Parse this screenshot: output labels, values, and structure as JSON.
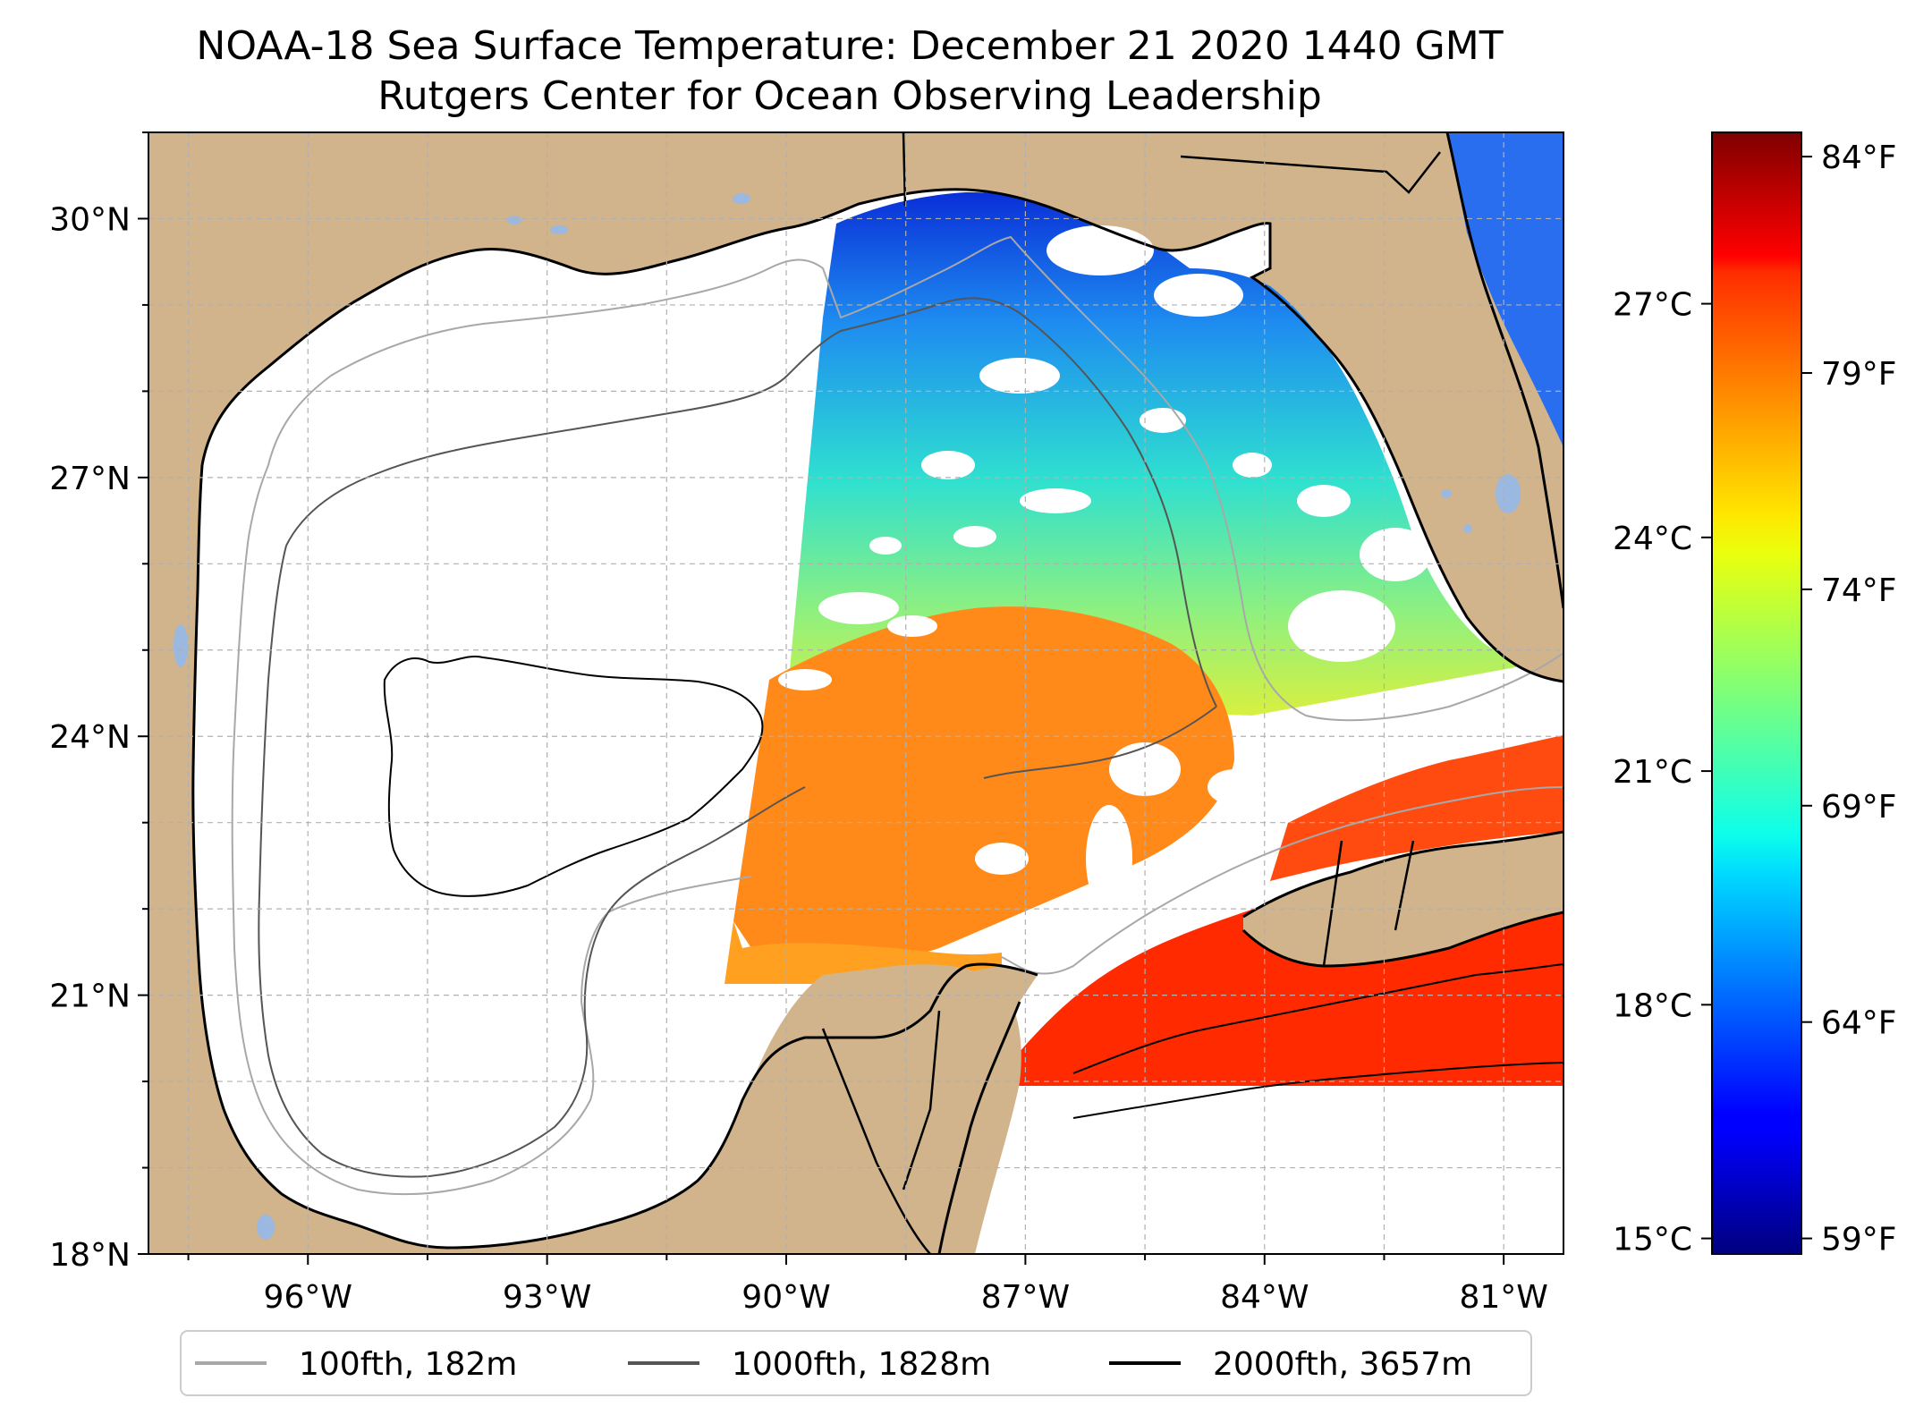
{
  "title": {
    "line1": "NOAA-18 Sea Surface Temperature: December 21 2020 1440 GMT",
    "line2": "Rutgers Center for Ocean Observing Leadership"
  },
  "map": {
    "lon_range": [
      -98,
      -80.25
    ],
    "lat_range": [
      18,
      31
    ],
    "lon_ticks": [
      {
        "value": -96,
        "label": "96°W"
      },
      {
        "value": -93,
        "label": "93°W"
      },
      {
        "value": -90,
        "label": "90°W"
      },
      {
        "value": -87,
        "label": "87°W"
      },
      {
        "value": -84,
        "label": "84°W"
      },
      {
        "value": -81,
        "label": "81°W"
      }
    ],
    "lat_ticks": [
      {
        "value": 18,
        "label": "18°N"
      },
      {
        "value": 21,
        "label": "21°N"
      },
      {
        "value": 24,
        "label": "24°N"
      },
      {
        "value": 27,
        "label": "27°N"
      },
      {
        "value": 30,
        "label": "30°N"
      }
    ],
    "grid": true,
    "colors": {
      "land": "#d2b48c",
      "lakes": "#9bb8e0",
      "coast": "#000000",
      "grid": "#b0b0b0",
      "missing": "#ffffff"
    }
  },
  "colorbar": {
    "colormap": "jet",
    "celsius_ticks": [
      {
        "value": 15,
        "label": "15°C"
      },
      {
        "value": 18,
        "label": "18°C"
      },
      {
        "value": 21,
        "label": "21°C"
      },
      {
        "value": 24,
        "label": "24°C"
      },
      {
        "value": 27,
        "label": "27°C"
      }
    ],
    "fahrenheit_ticks": [
      {
        "value": 59,
        "label": "59°F"
      },
      {
        "value": 64,
        "label": "64°F"
      },
      {
        "value": 69,
        "label": "69°F"
      },
      {
        "value": 74,
        "label": "74°F"
      },
      {
        "value": 79,
        "label": "79°F"
      },
      {
        "value": 84,
        "label": "84°F"
      }
    ]
  },
  "legend": {
    "placement": "bottom-center",
    "items": [
      {
        "label": "100fth, 182m",
        "color": "#a8a8a8"
      },
      {
        "label": "1000fth, 1828m",
        "color": "#555555"
      },
      {
        "label": "2000fth, 3657m",
        "color": "#000000"
      }
    ]
  }
}
